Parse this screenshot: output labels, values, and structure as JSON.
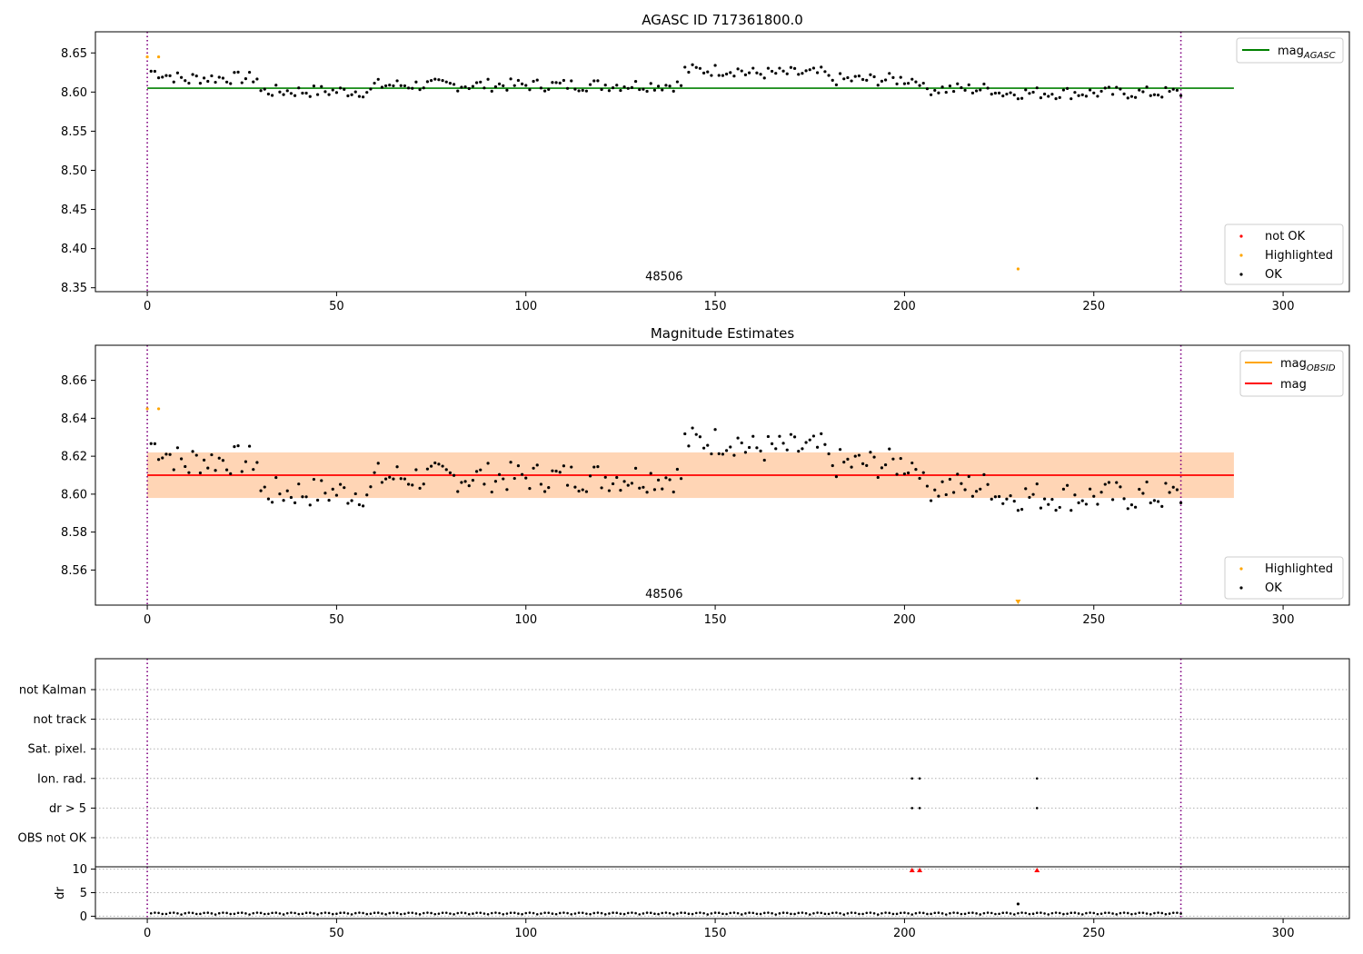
{
  "chart_data": [
    {
      "type": "scatter",
      "panel": "top",
      "title": "AGASC ID 717361800.0",
      "xlim": [
        -13.7,
        317.5
      ],
      "ylim": [
        8.345,
        8.677
      ],
      "xticks": [
        0,
        50,
        100,
        150,
        200,
        250,
        300
      ],
      "yticks": [
        8.35,
        8.4,
        8.45,
        8.5,
        8.55,
        8.6,
        8.65
      ],
      "ytick_labels": [
        "8.35",
        "8.40",
        "8.45",
        "8.50",
        "8.55",
        "8.60",
        "8.65"
      ],
      "vlines_x": [
        0,
        273
      ],
      "vline_color": "#800080",
      "hline": {
        "name": "mag_AGASC",
        "value": 8.605,
        "x_range": [
          0,
          287
        ],
        "color": "#008000"
      },
      "annotation": {
        "text": "48506",
        "x": 136.5,
        "y": 8.35
      },
      "series": [
        {
          "name": "not OK",
          "color": "#ff0000",
          "points": []
        },
        {
          "name": "Highlighted",
          "color": "#ffa500",
          "points": [
            [
              0,
              8.645
            ],
            [
              3,
              8.645
            ],
            [
              230,
              8.374
            ]
          ]
        },
        {
          "name": "OK",
          "color": "#000000",
          "points": "shared_ok"
        }
      ],
      "legend": [
        {
          "label": "mag",
          "subscript": "AGASC",
          "kind": "line",
          "color": "#008000"
        },
        {
          "label": "not OK",
          "kind": "marker",
          "color": "#ff0000"
        },
        {
          "label": "Highlighted",
          "kind": "marker",
          "color": "#ffa500"
        },
        {
          "label": "OK",
          "kind": "marker",
          "color": "#000000"
        }
      ],
      "legend_placement": [
        "upper right",
        "lower right"
      ],
      "grid": false
    },
    {
      "type": "scatter",
      "panel": "middle",
      "title": "Magnitude Estimates",
      "xlim": [
        -13.7,
        317.5
      ],
      "ylim": [
        8.5415,
        8.6785
      ],
      "xticks": [
        0,
        50,
        100,
        150,
        200,
        250,
        300
      ],
      "yticks": [
        8.56,
        8.58,
        8.6,
        8.62,
        8.64,
        8.66
      ],
      "ytick_labels": [
        "8.56",
        "8.58",
        "8.60",
        "8.62",
        "8.64",
        "8.66"
      ],
      "vlines_x": [
        0,
        273
      ],
      "vline_color": "#800080",
      "hline": {
        "name": "mag",
        "value": 8.61,
        "x_range": [
          0,
          287
        ],
        "color": "#ff0000"
      },
      "bands": [
        {
          "y_range": [
            8.598,
            8.622
          ],
          "color": "#ffc0cb",
          "opacity": 0.45
        },
        {
          "y_range": [
            8.598,
            8.622
          ],
          "color": "#ffa500",
          "opacity": 0.22
        }
      ],
      "annotation": {
        "text": "48506",
        "x": 136.5,
        "y": 8.5445
      },
      "series": [
        {
          "name": "Highlighted",
          "color": "#ffa500",
          "points": [
            [
              0,
              8.645
            ],
            [
              3,
              8.645
            ]
          ]
        },
        {
          "name": "OK",
          "color": "#000000",
          "points": "shared_ok"
        }
      ],
      "offscale_markers": [
        {
          "x": 230,
          "color": "#ffa500",
          "marker": "triangle-down"
        }
      ],
      "legend": [
        {
          "label": "mag",
          "subscript": "OBSID",
          "kind": "line",
          "color": "#ffa500"
        },
        {
          "label": "mag",
          "kind": "line",
          "color": "#ff0000"
        },
        {
          "label": "Highlighted",
          "kind": "marker",
          "color": "#ffa500"
        },
        {
          "label": "OK",
          "kind": "marker",
          "color": "#000000"
        }
      ],
      "legend_placement": [
        "upper right",
        "lower right"
      ],
      "grid": false
    },
    {
      "type": "scatter",
      "panel": "flags",
      "xlim": [
        -13.7,
        317.5
      ],
      "xticks": [
        0,
        50,
        100,
        150,
        200,
        250,
        300
      ],
      "categories": [
        "not Kalman",
        "not track",
        "Sat. pixel.",
        "Ion. rad.",
        "dr > 5",
        "OBS not OK"
      ],
      "flag_points": {
        "Ion. rad.": [
          202,
          204,
          235
        ],
        "dr > 5": [
          202,
          204,
          235
        ]
      },
      "vlines_x": [
        0,
        273
      ],
      "grid": "horizontal dotted"
    },
    {
      "type": "scatter",
      "panel": "dr",
      "ylabel": "dr",
      "xlim": [
        -13.7,
        317.5
      ],
      "ylim": [
        -0.5,
        10.5
      ],
      "yticks": [
        0,
        5,
        10
      ],
      "ytick_labels": [
        "0",
        "5",
        "10"
      ],
      "xticks": [
        0,
        50,
        100,
        150,
        200,
        250,
        300
      ],
      "xtick_labels": [
        "0",
        "50",
        "100",
        "150",
        "200",
        "250",
        "300"
      ],
      "dr_spikes": [
        [
          230,
          2.6
        ]
      ],
      "offscale_markers": [
        {
          "x": 202,
          "color": "#ff0000",
          "marker": "triangle-up"
        },
        {
          "x": 204,
          "color": "#ff0000",
          "marker": "triangle-up"
        },
        {
          "x": 235,
          "color": "#ff0000",
          "marker": "triangle-up"
        }
      ],
      "vlines_x": [
        0,
        273
      ],
      "grid": "horizontal dotted"
    }
  ]
}
